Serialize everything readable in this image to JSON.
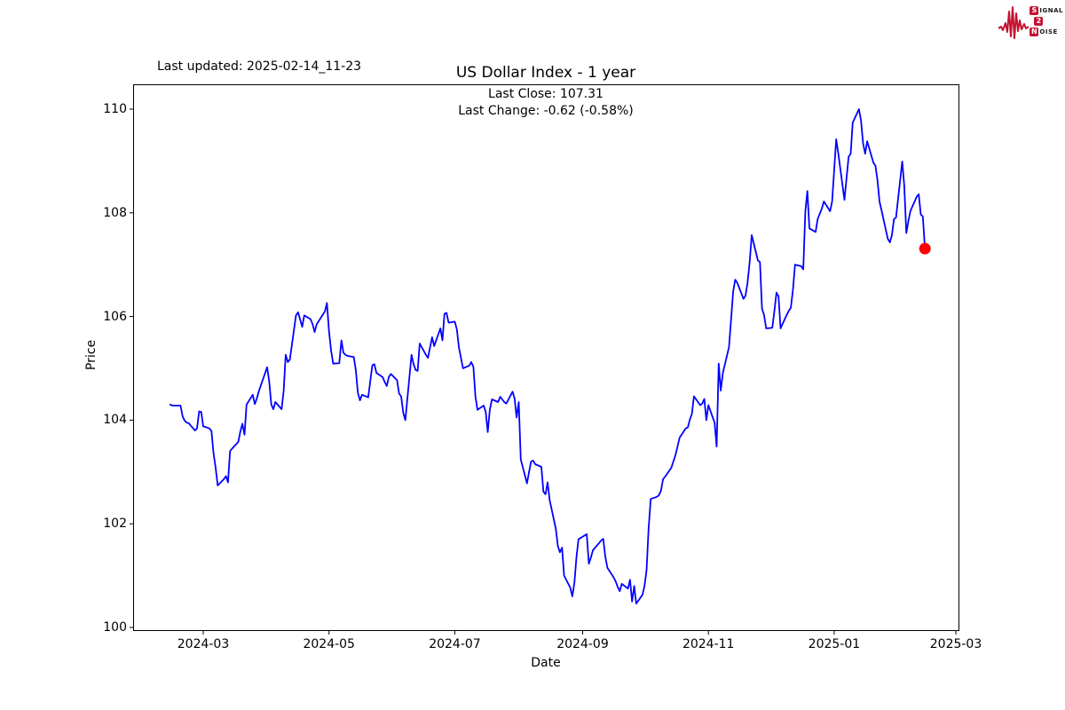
{
  "header": {
    "last_updated": "Last updated: 2025-02-14_11-23",
    "title": "US Dollar Index - 1 year",
    "subtitle_line1": "Last Close: 107.31",
    "subtitle_line2": "Last Change: -0.62 (-0.58%)"
  },
  "logo": {
    "color": "#C41230",
    "row1_box": "S",
    "row1_rest": "IGNAL",
    "row2_box": "2",
    "row3_box": "N",
    "row3_rest": "OISE"
  },
  "chart_data": {
    "type": "line",
    "title": "US Dollar Index - 1 year",
    "xlabel": "Date",
    "ylabel": "Price",
    "legend": "none",
    "grid": false,
    "line_color": "#0000FF",
    "last_point_color": "#FF0000",
    "last_close": 107.31,
    "last_change": "-0.62 (-0.58%)",
    "ylim": [
      99.9,
      110.5
    ],
    "y_ticks": [
      100,
      102,
      104,
      106,
      108,
      110
    ],
    "x_ticks": [
      {
        "label": "2024-03",
        "date": "2024-03-01"
      },
      {
        "label": "2024-05",
        "date": "2024-05-01"
      },
      {
        "label": "2024-07",
        "date": "2024-07-01"
      },
      {
        "label": "2024-09",
        "date": "2024-09-01"
      },
      {
        "label": "2024-11",
        "date": "2024-11-01"
      },
      {
        "label": "2025-01",
        "date": "2025-01-01"
      },
      {
        "label": "2025-03",
        "date": "2025-03-01"
      }
    ],
    "series": [
      {
        "name": "US Dollar Index",
        "points": [
          [
            "2024-02-14",
            104.3
          ],
          [
            "2024-02-15",
            104.28
          ],
          [
            "2024-02-16",
            104.28
          ],
          [
            "2024-02-19",
            104.28
          ],
          [
            "2024-02-20",
            104.07
          ],
          [
            "2024-02-21",
            103.99
          ],
          [
            "2024-02-22",
            103.95
          ],
          [
            "2024-02-23",
            103.94
          ],
          [
            "2024-02-26",
            103.8
          ],
          [
            "2024-02-27",
            103.84
          ],
          [
            "2024-02-28",
            104.17
          ],
          [
            "2024-02-29",
            104.16
          ],
          [
            "2024-03-01",
            103.88
          ],
          [
            "2024-03-04",
            103.84
          ],
          [
            "2024-03-05",
            103.79
          ],
          [
            "2024-03-06",
            103.36
          ],
          [
            "2024-03-07",
            103.09
          ],
          [
            "2024-03-08",
            102.74
          ],
          [
            "2024-03-11",
            102.86
          ],
          [
            "2024-03-12",
            102.92
          ],
          [
            "2024-03-13",
            102.8
          ],
          [
            "2024-03-14",
            103.4
          ],
          [
            "2024-03-15",
            103.45
          ],
          [
            "2024-03-18",
            103.58
          ],
          [
            "2024-03-19",
            103.78
          ],
          [
            "2024-03-20",
            103.93
          ],
          [
            "2024-03-21",
            103.72
          ],
          [
            "2024-03-22",
            104.3
          ],
          [
            "2024-03-25",
            104.49
          ],
          [
            "2024-03-26",
            104.31
          ],
          [
            "2024-03-27",
            104.42
          ],
          [
            "2024-03-28",
            104.56
          ],
          [
            "2024-04-01",
            105.02
          ],
          [
            "2024-04-02",
            104.75
          ],
          [
            "2024-04-03",
            104.3
          ],
          [
            "2024-04-04",
            104.21
          ],
          [
            "2024-04-05",
            104.35
          ],
          [
            "2024-04-08",
            104.21
          ],
          [
            "2024-04-09",
            104.56
          ],
          [
            "2024-04-10",
            105.26
          ],
          [
            "2024-04-11",
            105.12
          ],
          [
            "2024-04-12",
            105.17
          ],
          [
            "2024-04-15",
            106.02
          ],
          [
            "2024-04-16",
            106.08
          ],
          [
            "2024-04-17",
            105.94
          ],
          [
            "2024-04-18",
            105.8
          ],
          [
            "2024-04-19",
            106.02
          ],
          [
            "2024-04-22",
            105.95
          ],
          [
            "2024-04-23",
            105.86
          ],
          [
            "2024-04-24",
            105.7
          ],
          [
            "2024-04-25",
            105.85
          ],
          [
            "2024-04-26",
            105.91
          ],
          [
            "2024-04-29",
            106.1
          ],
          [
            "2024-04-30",
            106.26
          ],
          [
            "2024-05-01",
            105.72
          ],
          [
            "2024-05-02",
            105.35
          ],
          [
            "2024-05-03",
            105.09
          ],
          [
            "2024-05-06",
            105.1
          ],
          [
            "2024-05-07",
            105.54
          ],
          [
            "2024-05-08",
            105.3
          ],
          [
            "2024-05-09",
            105.26
          ],
          [
            "2024-05-10",
            105.24
          ],
          [
            "2024-05-13",
            105.22
          ],
          [
            "2024-05-14",
            104.97
          ],
          [
            "2024-05-15",
            104.53
          ],
          [
            "2024-05-16",
            104.38
          ],
          [
            "2024-05-17",
            104.49
          ],
          [
            "2024-05-20",
            104.44
          ],
          [
            "2024-05-21",
            104.75
          ],
          [
            "2024-05-22",
            105.06
          ],
          [
            "2024-05-23",
            105.08
          ],
          [
            "2024-05-24",
            104.91
          ],
          [
            "2024-05-27",
            104.83
          ],
          [
            "2024-05-28",
            104.74
          ],
          [
            "2024-05-29",
            104.66
          ],
          [
            "2024-05-30",
            104.83
          ],
          [
            "2024-05-31",
            104.89
          ],
          [
            "2024-06-03",
            104.77
          ],
          [
            "2024-06-04",
            104.51
          ],
          [
            "2024-06-05",
            104.46
          ],
          [
            "2024-06-06",
            104.14
          ],
          [
            "2024-06-07",
            104.0
          ],
          [
            "2024-06-10",
            105.26
          ],
          [
            "2024-06-11",
            105.08
          ],
          [
            "2024-06-12",
            104.97
          ],
          [
            "2024-06-13",
            104.95
          ],
          [
            "2024-06-14",
            105.48
          ],
          [
            "2024-06-17",
            105.26
          ],
          [
            "2024-06-18",
            105.2
          ],
          [
            "2024-06-20",
            105.6
          ],
          [
            "2024-06-21",
            105.43
          ],
          [
            "2024-06-24",
            105.77
          ],
          [
            "2024-06-25",
            105.54
          ],
          [
            "2024-06-26",
            106.05
          ],
          [
            "2024-06-27",
            106.07
          ],
          [
            "2024-06-28",
            105.88
          ],
          [
            "2024-07-01",
            105.9
          ],
          [
            "2024-07-02",
            105.75
          ],
          [
            "2024-07-03",
            105.4
          ],
          [
            "2024-07-05",
            105.0
          ],
          [
            "2024-07-08",
            105.05
          ],
          [
            "2024-07-09",
            105.12
          ],
          [
            "2024-07-10",
            105.03
          ],
          [
            "2024-07-11",
            104.45
          ],
          [
            "2024-07-12",
            104.2
          ],
          [
            "2024-07-15",
            104.28
          ],
          [
            "2024-07-16",
            104.16
          ],
          [
            "2024-07-17",
            103.77
          ],
          [
            "2024-07-18",
            104.2
          ],
          [
            "2024-07-19",
            104.4
          ],
          [
            "2024-07-22",
            104.35
          ],
          [
            "2024-07-23",
            104.45
          ],
          [
            "2024-07-24",
            104.4
          ],
          [
            "2024-07-25",
            104.35
          ],
          [
            "2024-07-26",
            104.32
          ],
          [
            "2024-07-29",
            104.55
          ],
          [
            "2024-07-30",
            104.42
          ],
          [
            "2024-07-31",
            104.05
          ],
          [
            "2024-08-01",
            104.35
          ],
          [
            "2024-08-02",
            103.24
          ],
          [
            "2024-08-05",
            102.78
          ],
          [
            "2024-08-06",
            103.0
          ],
          [
            "2024-08-07",
            103.2
          ],
          [
            "2024-08-08",
            103.22
          ],
          [
            "2024-08-09",
            103.15
          ],
          [
            "2024-08-12",
            103.1
          ],
          [
            "2024-08-13",
            102.62
          ],
          [
            "2024-08-14",
            102.57
          ],
          [
            "2024-08-15",
            102.8
          ],
          [
            "2024-08-16",
            102.46
          ],
          [
            "2024-08-19",
            101.9
          ],
          [
            "2024-08-20",
            101.57
          ],
          [
            "2024-08-21",
            101.45
          ],
          [
            "2024-08-22",
            101.54
          ],
          [
            "2024-08-23",
            101.0
          ],
          [
            "2024-08-26",
            100.77
          ],
          [
            "2024-08-27",
            100.6
          ],
          [
            "2024-08-28",
            100.86
          ],
          [
            "2024-08-29",
            101.35
          ],
          [
            "2024-08-30",
            101.7
          ],
          [
            "2024-09-03",
            101.8
          ],
          [
            "2024-09-04",
            101.23
          ],
          [
            "2024-09-05",
            101.35
          ],
          [
            "2024-09-06",
            101.49
          ],
          [
            "2024-09-09",
            101.63
          ],
          [
            "2024-09-10",
            101.68
          ],
          [
            "2024-09-11",
            101.71
          ],
          [
            "2024-09-12",
            101.37
          ],
          [
            "2024-09-13",
            101.15
          ],
          [
            "2024-09-16",
            100.97
          ],
          [
            "2024-09-17",
            100.89
          ],
          [
            "2024-09-18",
            100.78
          ],
          [
            "2024-09-19",
            100.7
          ],
          [
            "2024-09-20",
            100.84
          ],
          [
            "2024-09-23",
            100.75
          ],
          [
            "2024-09-24",
            100.92
          ],
          [
            "2024-09-25",
            100.5
          ],
          [
            "2024-09-26",
            100.8
          ],
          [
            "2024-09-27",
            100.46
          ],
          [
            "2024-09-30",
            100.63
          ],
          [
            "2024-10-01",
            100.8
          ],
          [
            "2024-10-02",
            101.1
          ],
          [
            "2024-10-03",
            101.9
          ],
          [
            "2024-10-04",
            102.48
          ],
          [
            "2024-10-07",
            102.52
          ],
          [
            "2024-10-08",
            102.55
          ],
          [
            "2024-10-09",
            102.64
          ],
          [
            "2024-10-10",
            102.86
          ],
          [
            "2024-10-11",
            102.91
          ],
          [
            "2024-10-14",
            103.08
          ],
          [
            "2024-10-15",
            103.2
          ],
          [
            "2024-10-16",
            103.32
          ],
          [
            "2024-10-17",
            103.49
          ],
          [
            "2024-10-18",
            103.66
          ],
          [
            "2024-10-21",
            103.84
          ],
          [
            "2024-10-22",
            103.86
          ],
          [
            "2024-10-23",
            104.01
          ],
          [
            "2024-10-24",
            104.12
          ],
          [
            "2024-10-25",
            104.46
          ],
          [
            "2024-10-28",
            104.29
          ],
          [
            "2024-10-29",
            104.32
          ],
          [
            "2024-10-30",
            104.41
          ],
          [
            "2024-10-31",
            104.0
          ],
          [
            "2024-11-01",
            104.29
          ],
          [
            "2024-11-04",
            103.95
          ],
          [
            "2024-11-05",
            103.49
          ],
          [
            "2024-11-06",
            105.09
          ],
          [
            "2024-11-07",
            104.57
          ],
          [
            "2024-11-08",
            104.91
          ],
          [
            "2024-11-11",
            105.41
          ],
          [
            "2024-11-12",
            105.95
          ],
          [
            "2024-11-13",
            106.48
          ],
          [
            "2024-11-14",
            106.71
          ],
          [
            "2024-11-15",
            106.65
          ],
          [
            "2024-11-18",
            106.34
          ],
          [
            "2024-11-19",
            106.4
          ],
          [
            "2024-11-20",
            106.65
          ],
          [
            "2024-11-21",
            107.05
          ],
          [
            "2024-11-22",
            107.57
          ],
          [
            "2024-11-25",
            107.08
          ],
          [
            "2024-11-26",
            107.05
          ],
          [
            "2024-11-27",
            106.15
          ],
          [
            "2024-11-28",
            106.03
          ],
          [
            "2024-11-29",
            105.77
          ],
          [
            "2024-12-02",
            105.78
          ],
          [
            "2024-12-03",
            106.11
          ],
          [
            "2024-12-04",
            106.46
          ],
          [
            "2024-12-05",
            106.39
          ],
          [
            "2024-12-06",
            105.77
          ],
          [
            "2024-12-09",
            106.03
          ],
          [
            "2024-12-10",
            106.11
          ],
          [
            "2024-12-11",
            106.17
          ],
          [
            "2024-12-12",
            106.52
          ],
          [
            "2024-12-13",
            107.0
          ],
          [
            "2024-12-16",
            106.97
          ],
          [
            "2024-12-17",
            106.91
          ],
          [
            "2024-12-18",
            108.02
          ],
          [
            "2024-12-19",
            108.42
          ],
          [
            "2024-12-20",
            107.7
          ],
          [
            "2024-12-23",
            107.63
          ],
          [
            "2024-12-24",
            107.88
          ],
          [
            "2024-12-26",
            108.08
          ],
          [
            "2024-12-27",
            108.22
          ],
          [
            "2024-12-30",
            108.03
          ],
          [
            "2024-12-31",
            108.22
          ],
          [
            "2025-01-02",
            109.42
          ],
          [
            "2025-01-03",
            109.14
          ],
          [
            "2025-01-06",
            108.25
          ],
          [
            "2025-01-07",
            108.68
          ],
          [
            "2025-01-08",
            109.08
          ],
          [
            "2025-01-09",
            109.14
          ],
          [
            "2025-01-10",
            109.74
          ],
          [
            "2025-01-13",
            110.0
          ],
          [
            "2025-01-14",
            109.79
          ],
          [
            "2025-01-15",
            109.34
          ],
          [
            "2025-01-16",
            109.14
          ],
          [
            "2025-01-17",
            109.38
          ],
          [
            "2025-01-20",
            108.97
          ],
          [
            "2025-01-21",
            108.91
          ],
          [
            "2025-01-22",
            108.63
          ],
          [
            "2025-01-23",
            108.22
          ],
          [
            "2025-01-24",
            108.04
          ],
          [
            "2025-01-27",
            107.5
          ],
          [
            "2025-01-28",
            107.43
          ],
          [
            "2025-01-29",
            107.57
          ],
          [
            "2025-01-30",
            107.88
          ],
          [
            "2025-01-31",
            107.91
          ],
          [
            "2025-02-03",
            108.99
          ],
          [
            "2025-02-04",
            108.52
          ],
          [
            "2025-02-05",
            107.61
          ],
          [
            "2025-02-06",
            107.85
          ],
          [
            "2025-02-07",
            108.04
          ],
          [
            "2025-02-10",
            108.31
          ],
          [
            "2025-02-11",
            108.36
          ],
          [
            "2025-02-12",
            107.97
          ],
          [
            "2025-02-13",
            107.93
          ],
          [
            "2025-02-14",
            107.31
          ]
        ]
      }
    ]
  }
}
